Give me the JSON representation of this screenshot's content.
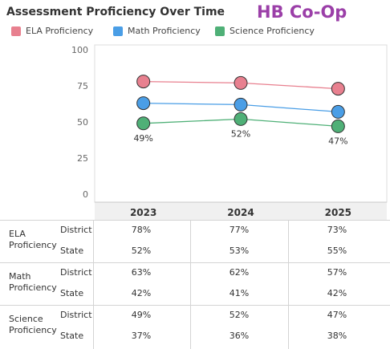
{
  "header": {
    "title": "Assessment Proficiency Over Time",
    "brand": "HB Co-Op",
    "brand_color": "#9b3fa8"
  },
  "chart_data": {
    "type": "line",
    "categories": [
      "2023",
      "2024",
      "2025"
    ],
    "ylim": [
      0,
      100
    ],
    "yticks": [
      "100",
      "75",
      "50",
      "25",
      "0"
    ],
    "series": [
      {
        "name": "ELA Proficiency",
        "color": "#e8808f",
        "values": [
          78,
          77,
          73
        ],
        "labels": []
      },
      {
        "name": "Math Proficiency",
        "color": "#4a9ee6",
        "values": [
          63,
          62,
          57
        ],
        "labels": []
      },
      {
        "name": "Science Proficiency",
        "color": "#4fb077",
        "values": [
          49,
          52,
          47
        ],
        "labels": [
          "49%",
          "52%",
          "47%"
        ]
      }
    ],
    "legend_position": "top-left",
    "grid": false
  },
  "table": {
    "groups": [
      {
        "label": "ELA Proficiency",
        "rows": [
          {
            "label": "District",
            "values": [
              "78%",
              "77%",
              "73%"
            ]
          },
          {
            "label": "State",
            "values": [
              "52%",
              "53%",
              "55%"
            ]
          }
        ]
      },
      {
        "label": "Math Proficiency",
        "rows": [
          {
            "label": "District",
            "values": [
              "63%",
              "62%",
              "57%"
            ]
          },
          {
            "label": "State",
            "values": [
              "42%",
              "41%",
              "42%"
            ]
          }
        ]
      },
      {
        "label": "Science Proficiency",
        "rows": [
          {
            "label": "District",
            "values": [
              "49%",
              "52%",
              "47%"
            ]
          },
          {
            "label": "State",
            "values": [
              "37%",
              "36%",
              "38%"
            ]
          }
        ]
      }
    ]
  }
}
